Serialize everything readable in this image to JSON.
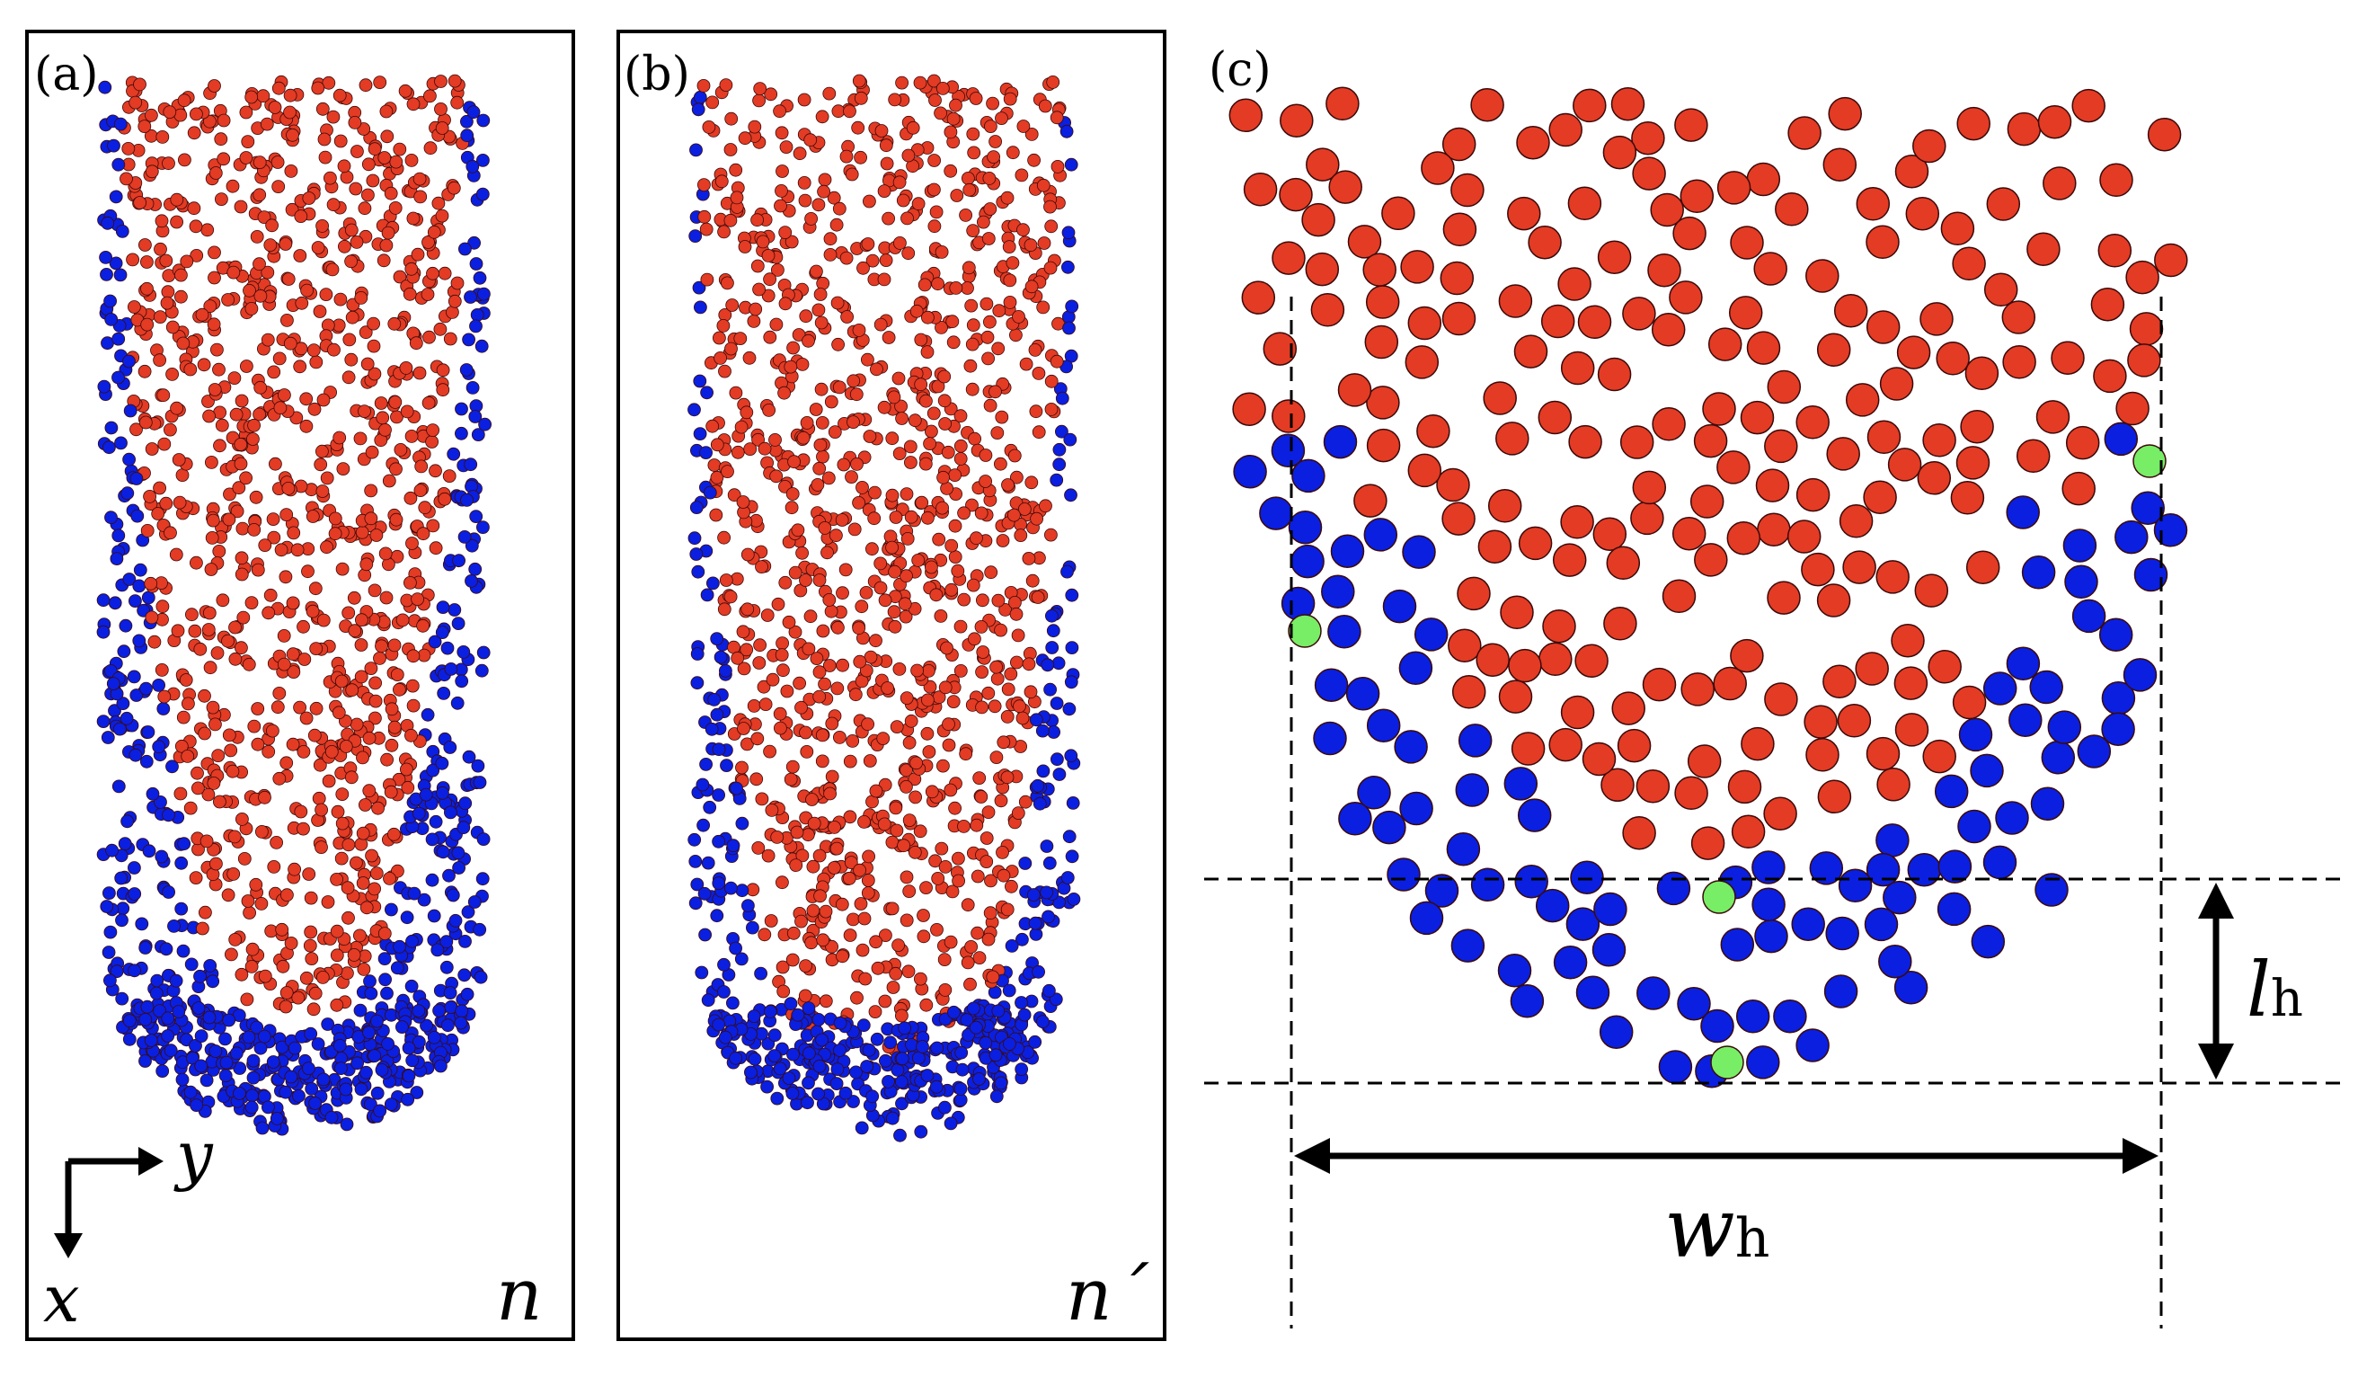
{
  "figure": {
    "panels": [
      {
        "label": "(a)",
        "quantity": "n"
      },
      {
        "label": "(b)",
        "quantity": "n´"
      },
      {
        "label": "(c)"
      }
    ],
    "axes": {
      "x": "x",
      "y": "y"
    },
    "dimensions": {
      "height": {
        "symbol": "l",
        "subscript": "h"
      },
      "width": {
        "symbol": "w",
        "subscript": "h"
      }
    },
    "colors": {
      "red": "#e33b24",
      "blue": "#0a1fe0",
      "green": "#77ee66",
      "outline": "#3a0a0a"
    }
  }
}
